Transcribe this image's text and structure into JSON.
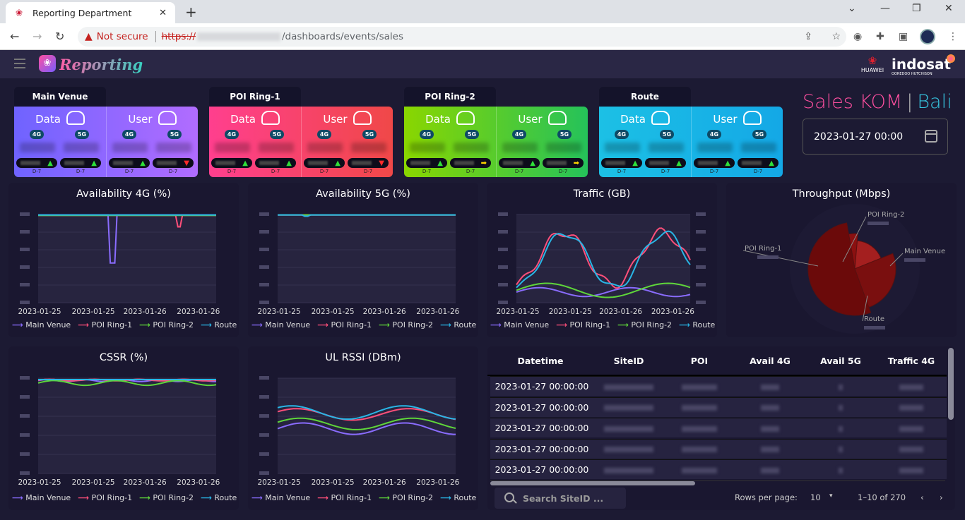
{
  "browser": {
    "tab_title": "Reporting Department",
    "not_secure": "Not secure",
    "scheme": "https://",
    "path": "/dashboards/events/sales"
  },
  "app": {
    "brand": "Reporting",
    "partner1": "HUAWEI",
    "partner2": "indosat",
    "partner2_sub": "OOREDOO HUTCHISON"
  },
  "poi_cards": [
    {
      "name": "Main Venue",
      "colors": [
        "#6f63ff",
        "#b16cff"
      ],
      "data_label": "Data",
      "user_label": "User",
      "pills": [
        "4G",
        "5G",
        "4G",
        "5G"
      ],
      "d7": "D-7",
      "trends": [
        "up",
        "up",
        "up",
        "down"
      ]
    },
    {
      "name": "POI Ring-1",
      "colors": [
        "#ff3f8e",
        "#f04848"
      ],
      "data_label": "Data",
      "user_label": "User",
      "pills": [
        "4G",
        "5G",
        "4G",
        "5G"
      ],
      "d7": "D-7",
      "trends": [
        "up",
        "up",
        "up",
        "down"
      ]
    },
    {
      "name": "POI Ring-2",
      "colors": [
        "#8ad600",
        "#25c25a"
      ],
      "data_label": "Data",
      "user_label": "User",
      "pills": [
        "4G",
        "5G",
        "4G",
        "5G"
      ],
      "d7": "D-7",
      "trends": [
        "up",
        "same",
        "up",
        "same"
      ]
    },
    {
      "name": "Route",
      "colors": [
        "#1cc0e5",
        "#14a8e6"
      ],
      "data_label": "Data",
      "user_label": "User",
      "pills": [
        "4G",
        "5G",
        "4G",
        "5G"
      ],
      "d7": "D-7",
      "trends": [
        "up",
        "up",
        "up",
        "up"
      ]
    }
  ],
  "sales": {
    "t1": "Sales KOM",
    "sep": "|",
    "t2": "Bali",
    "date": "2023-01-27 00:00"
  },
  "legend": [
    "Main Venue",
    "POI Ring-1",
    "POI Ring-2",
    "Route"
  ],
  "series_colors": {
    "main": "#8a6cff",
    "ring1": "#ff4f7a",
    "ring2": "#5fd63a",
    "route": "#28b6e6"
  },
  "charts": {
    "avail4g": {
      "title": "Availability 4G (%)",
      "xticks": [
        "2023-01-25",
        "2023-01-25",
        "2023-01-26",
        "2023-01-26"
      ]
    },
    "avail5g": {
      "title": "Availability 5G (%)",
      "xticks": [
        "2023-01-25",
        "2023-01-25",
        "2023-01-26",
        "2023-01-26"
      ]
    },
    "traffic": {
      "title": "Traffic (GB)",
      "xticks": [
        "2023-01-25",
        "2023-01-25",
        "2023-01-26",
        "2023-01-26"
      ]
    },
    "throughput": {
      "title": "Throughput (Mbps)",
      "labels": [
        "POI Ring-2",
        "Main Venue",
        "POI Ring-1",
        "Route"
      ]
    },
    "cssr": {
      "title": "CSSR (%)",
      "xticks": [
        "2023-01-25",
        "2023-01-25",
        "2023-01-26",
        "2023-01-26"
      ]
    },
    "ulrssi": {
      "title": "UL RSSI (DBm)",
      "xticks": [
        "2023-01-25",
        "2023-01-25",
        "2023-01-26",
        "2023-01-26"
      ]
    }
  },
  "table": {
    "headers": [
      "Datetime",
      "SiteID",
      "POI",
      "Avail 4G",
      "Avail 5G",
      "Traffic 4G"
    ],
    "rows": [
      {
        "dt": "2023-01-27 00:00:00"
      },
      {
        "dt": "2023-01-27 00:00:00"
      },
      {
        "dt": "2023-01-27 00:00:00"
      },
      {
        "dt": "2023-01-27 00:00:00"
      },
      {
        "dt": "2023-01-27 00:00:00"
      }
    ],
    "search_placeholder": "Search SiteID ...",
    "rows_per_page_label": "Rows per page:",
    "rows_per_page": "10",
    "range": "1–10 of 270"
  }
}
